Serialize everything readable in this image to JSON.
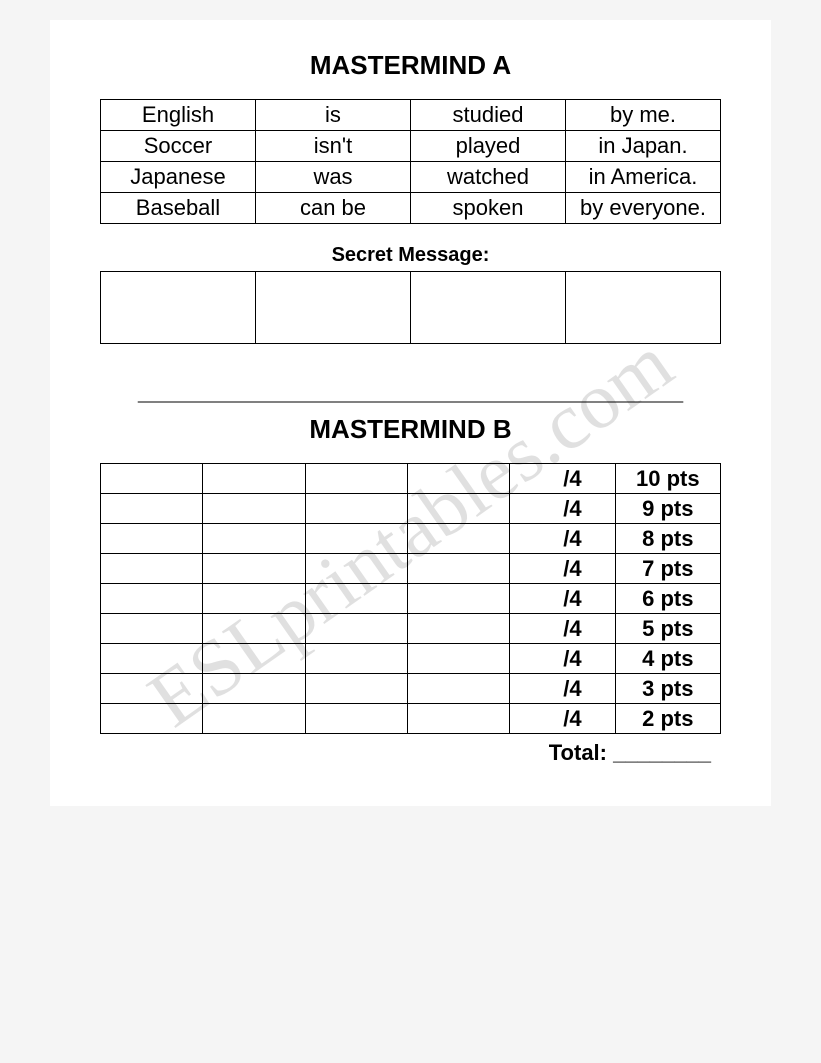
{
  "sectionA": {
    "title": "MASTERMIND A",
    "grid": {
      "columns": 4,
      "rows": [
        [
          "English",
          "is",
          "studied",
          "by me."
        ],
        [
          "Soccer",
          "isn't",
          "played",
          "in Japan."
        ],
        [
          "Japanese",
          "was",
          "watched",
          "in America."
        ],
        [
          "Baseball",
          "can be",
          "spoken",
          "by everyone."
        ]
      ]
    },
    "secret_label": "Secret Message:",
    "secret_cells": 4
  },
  "divider": "___________________________________",
  "sectionB": {
    "title": "MASTERMIND B",
    "score_denominator": "/4",
    "rows": [
      {
        "frac": "/4",
        "pts": "10 pts"
      },
      {
        "frac": "/4",
        "pts": "9 pts"
      },
      {
        "frac": "/4",
        "pts": "8 pts"
      },
      {
        "frac": "/4",
        "pts": "7 pts"
      },
      {
        "frac": "/4",
        "pts": "6 pts"
      },
      {
        "frac": "/4",
        "pts": "5 pts"
      },
      {
        "frac": "/4",
        "pts": "4 pts"
      },
      {
        "frac": "/4",
        "pts": "3 pts"
      },
      {
        "frac": "/4",
        "pts": "2 pts"
      }
    ],
    "guess_columns": 4,
    "total_label": "Total:  ________"
  },
  "watermark": "ESLprintables.com",
  "colors": {
    "page_bg": "#ffffff",
    "outer_bg": "#f5f5f5",
    "border": "#000000",
    "text": "#000000",
    "watermark": "rgba(0,0,0,0.12)"
  },
  "fonts": {
    "body": "Comic Sans MS",
    "headings": "Arial",
    "title_size_pt": 20,
    "cell_size_pt": 16
  }
}
